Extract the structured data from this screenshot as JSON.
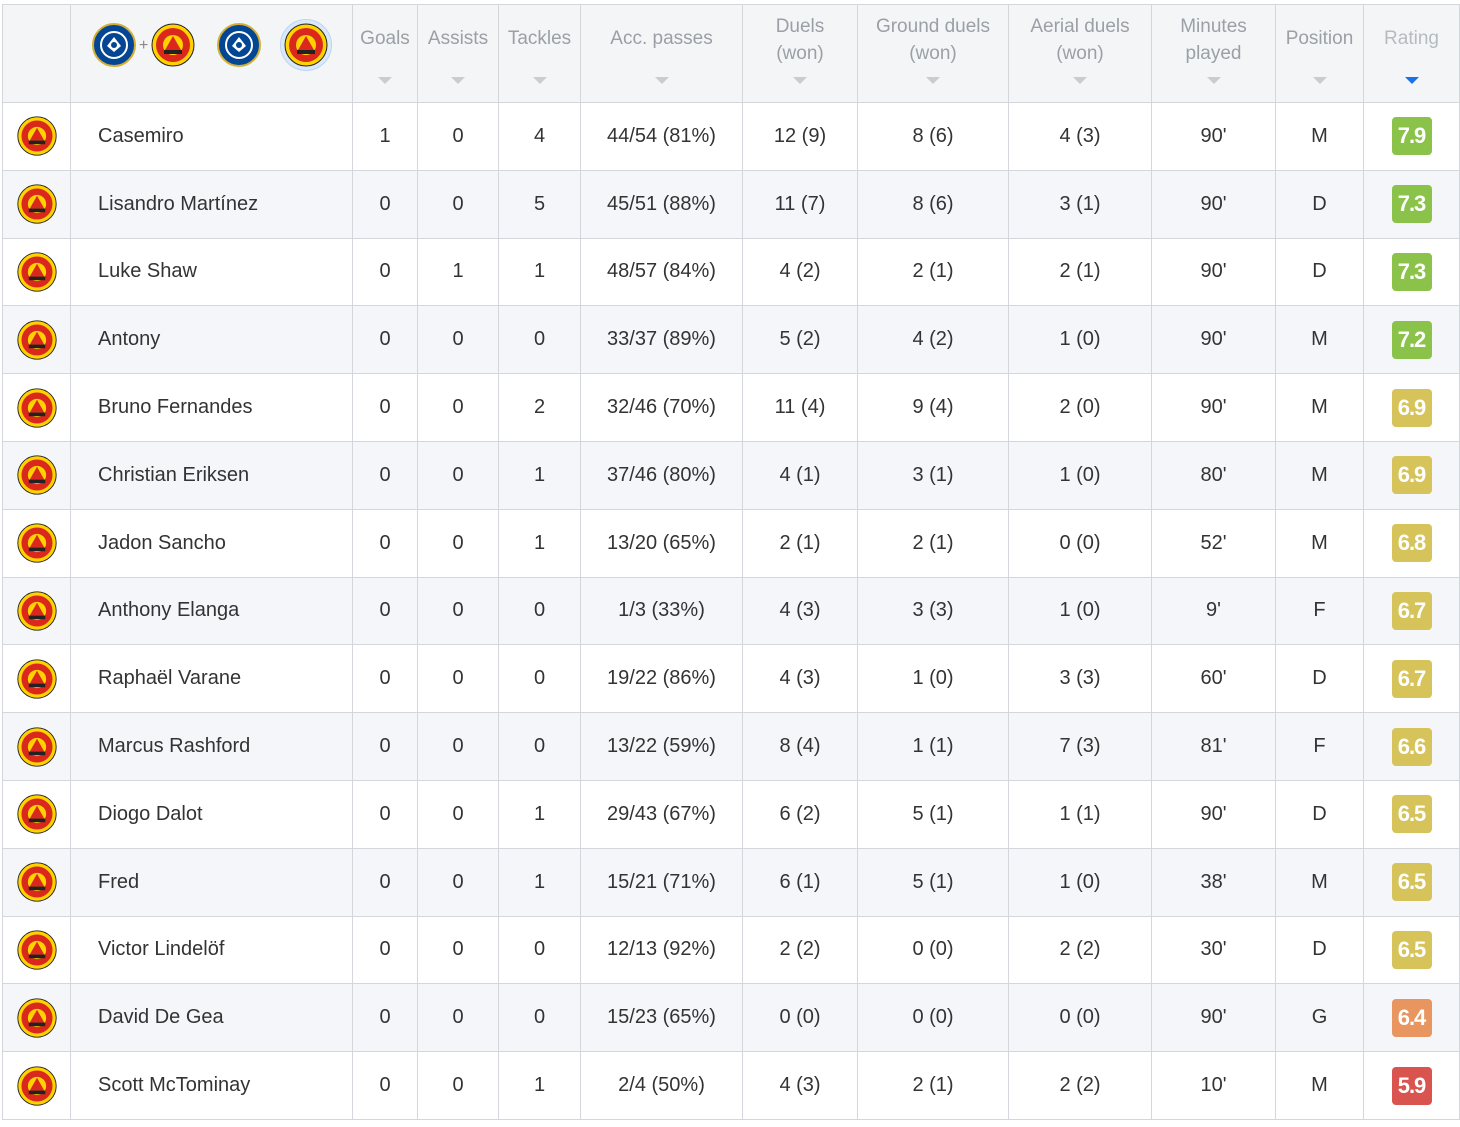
{
  "colors": {
    "rating_green": "#8bc34a",
    "rating_yellow": "#d6c45a",
    "rating_orange": "#e8955f",
    "rating_red": "#d9534f",
    "sort_active": "#1a73e8"
  },
  "team_filters": [
    {
      "name": "chelsea-and-man-utd",
      "icons": [
        "chelsea-crest-icon",
        "man-utd-crest-icon"
      ],
      "separator": "+",
      "active": false
    },
    {
      "name": "chelsea",
      "icons": [
        "chelsea-crest-icon"
      ],
      "active": false
    },
    {
      "name": "man-utd",
      "icons": [
        "man-utd-crest-icon"
      ],
      "active": true
    }
  ],
  "columns": [
    {
      "key": "goals",
      "label": "Goals"
    },
    {
      "key": "assists",
      "label": "Assists"
    },
    {
      "key": "tackles",
      "label": "Tackles"
    },
    {
      "key": "acc_passes",
      "label": "Acc. passes"
    },
    {
      "key": "duels",
      "label": "Duels",
      "label2": "(won)"
    },
    {
      "key": "ground_duels",
      "label": "Ground duels",
      "label2": "(won)"
    },
    {
      "key": "aerial_duels",
      "label": "Aerial duels",
      "label2": "(won)"
    },
    {
      "key": "minutes",
      "label": "Minutes",
      "label2": "played"
    },
    {
      "key": "position",
      "label": "Position"
    },
    {
      "key": "rating",
      "label": "Rating",
      "sorted": true
    }
  ],
  "players": [
    {
      "name": "Casemiro",
      "goals": "1",
      "assists": "0",
      "tackles": "4",
      "acc_passes": "44/54 (81%)",
      "duels": "12 (9)",
      "ground_duels": "8 (6)",
      "aerial_duels": "4 (3)",
      "minutes": "90'",
      "position": "M",
      "rating": "7.9",
      "rating_color": "#8bc34a"
    },
    {
      "name": "Lisandro Martínez",
      "goals": "0",
      "assists": "0",
      "tackles": "5",
      "acc_passes": "45/51 (88%)",
      "duels": "11 (7)",
      "ground_duels": "8 (6)",
      "aerial_duels": "3 (1)",
      "minutes": "90'",
      "position": "D",
      "rating": "7.3",
      "rating_color": "#8bc34a"
    },
    {
      "name": "Luke Shaw",
      "goals": "0",
      "assists": "1",
      "tackles": "1",
      "acc_passes": "48/57 (84%)",
      "duels": "4 (2)",
      "ground_duels": "2 (1)",
      "aerial_duels": "2 (1)",
      "minutes": "90'",
      "position": "D",
      "rating": "7.3",
      "rating_color": "#8bc34a"
    },
    {
      "name": "Antony",
      "goals": "0",
      "assists": "0",
      "tackles": "0",
      "acc_passes": "33/37 (89%)",
      "duels": "5 (2)",
      "ground_duels": "4 (2)",
      "aerial_duels": "1 (0)",
      "minutes": "90'",
      "position": "M",
      "rating": "7.2",
      "rating_color": "#8bc34a"
    },
    {
      "name": "Bruno Fernandes",
      "goals": "0",
      "assists": "0",
      "tackles": "2",
      "acc_passes": "32/46 (70%)",
      "duels": "11 (4)",
      "ground_duels": "9 (4)",
      "aerial_duels": "2 (0)",
      "minutes": "90'",
      "position": "M",
      "rating": "6.9",
      "rating_color": "#d6c45a"
    },
    {
      "name": "Christian Eriksen",
      "goals": "0",
      "assists": "0",
      "tackles": "1",
      "acc_passes": "37/46 (80%)",
      "duels": "4 (1)",
      "ground_duels": "3 (1)",
      "aerial_duels": "1 (0)",
      "minutes": "80'",
      "position": "M",
      "rating": "6.9",
      "rating_color": "#d6c45a"
    },
    {
      "name": "Jadon Sancho",
      "goals": "0",
      "assists": "0",
      "tackles": "1",
      "acc_passes": "13/20 (65%)",
      "duels": "2 (1)",
      "ground_duels": "2 (1)",
      "aerial_duels": "0 (0)",
      "minutes": "52'",
      "position": "M",
      "rating": "6.8",
      "rating_color": "#d6c45a"
    },
    {
      "name": "Anthony Elanga",
      "goals": "0",
      "assists": "0",
      "tackles": "0",
      "acc_passes": "1/3 (33%)",
      "duels": "4 (3)",
      "ground_duels": "3 (3)",
      "aerial_duels": "1 (0)",
      "minutes": "9'",
      "position": "F",
      "rating": "6.7",
      "rating_color": "#d6c45a"
    },
    {
      "name": "Raphaël Varane",
      "goals": "0",
      "assists": "0",
      "tackles": "0",
      "acc_passes": "19/22 (86%)",
      "duels": "4 (3)",
      "ground_duels": "1 (0)",
      "aerial_duels": "3 (3)",
      "minutes": "60'",
      "position": "D",
      "rating": "6.7",
      "rating_color": "#d6c45a"
    },
    {
      "name": "Marcus Rashford",
      "goals": "0",
      "assists": "0",
      "tackles": "0",
      "acc_passes": "13/22 (59%)",
      "duels": "8 (4)",
      "ground_duels": "1 (1)",
      "aerial_duels": "7 (3)",
      "minutes": "81'",
      "position": "F",
      "rating": "6.6",
      "rating_color": "#d6c45a"
    },
    {
      "name": "Diogo Dalot",
      "goals": "0",
      "assists": "0",
      "tackles": "1",
      "acc_passes": "29/43 (67%)",
      "duels": "6 (2)",
      "ground_duels": "5 (1)",
      "aerial_duels": "1 (1)",
      "minutes": "90'",
      "position": "D",
      "rating": "6.5",
      "rating_color": "#d6c45a"
    },
    {
      "name": "Fred",
      "goals": "0",
      "assists": "0",
      "tackles": "1",
      "acc_passes": "15/21 (71%)",
      "duels": "6 (1)",
      "ground_duels": "5 (1)",
      "aerial_duels": "1 (0)",
      "minutes": "38'",
      "position": "M",
      "rating": "6.5",
      "rating_color": "#d6c45a"
    },
    {
      "name": "Victor Lindelöf",
      "goals": "0",
      "assists": "0",
      "tackles": "0",
      "acc_passes": "12/13 (92%)",
      "duels": "2 (2)",
      "ground_duels": "0 (0)",
      "aerial_duels": "2 (2)",
      "minutes": "30'",
      "position": "D",
      "rating": "6.5",
      "rating_color": "#d6c45a"
    },
    {
      "name": "David De Gea",
      "goals": "0",
      "assists": "0",
      "tackles": "0",
      "acc_passes": "15/23 (65%)",
      "duels": "0 (0)",
      "ground_duels": "0 (0)",
      "aerial_duels": "0 (0)",
      "minutes": "90'",
      "position": "G",
      "rating": "6.4",
      "rating_color": "#e8955f"
    },
    {
      "name": "Scott McTominay",
      "goals": "0",
      "assists": "0",
      "tackles": "1",
      "acc_passes": "2/4 (50%)",
      "duels": "4 (3)",
      "ground_duels": "2 (1)",
      "aerial_duels": "2 (2)",
      "minutes": "10'",
      "position": "M",
      "rating": "5.9",
      "rating_color": "#d9534f"
    }
  ]
}
